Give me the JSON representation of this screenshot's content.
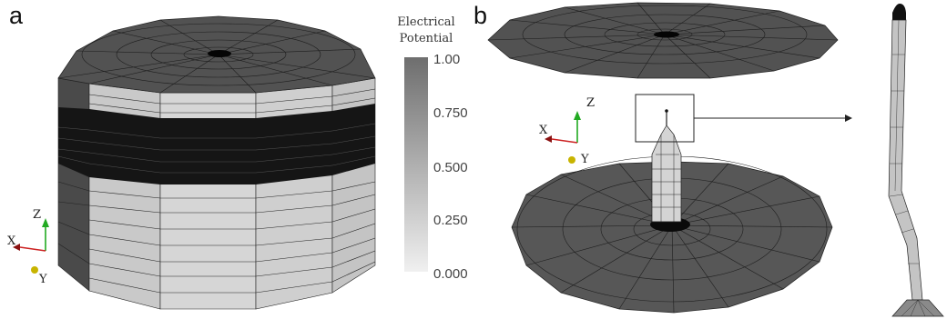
{
  "panels": {
    "a": "a",
    "b": "b"
  },
  "colorbar": {
    "title_line1": "Electrical",
    "title_line2": "Potential",
    "ticks": [
      "1.00",
      "0.750",
      "0.500",
      "0.250",
      "0.000"
    ]
  },
  "axes_a": {
    "x": "X",
    "y": "Y",
    "z": "Z"
  },
  "axes_b": {
    "x": "X",
    "y": "Y",
    "z": "Z"
  },
  "colors": {
    "mesh_dark": "#5a5a5a",
    "mesh_light": "#d2d2d2",
    "mesh_band": "#1a1a1a",
    "axis_x": "#cc2222",
    "axis_y": "#c8b400",
    "axis_z": "#22aa22"
  }
}
